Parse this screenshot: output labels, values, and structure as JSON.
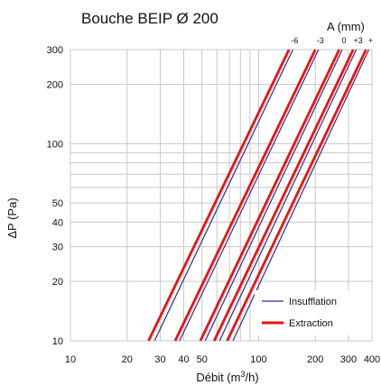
{
  "chart_data": {
    "type": "line",
    "title": "Bouche BEIP Ø 200",
    "xlabel": "Débit (m³/h)",
    "xlabel_parts": {
      "main": "Débit (m",
      "sup": "3",
      "end": "/h)"
    },
    "ylabel": "ΔP (Pa)",
    "x_scale": "log",
    "y_scale": "log",
    "xlim": [
      10,
      400
    ],
    "ylim": [
      10,
      300
    ],
    "x_ticks": [
      10,
      20,
      30,
      40,
      50,
      100,
      200,
      300,
      400
    ],
    "y_ticks": [
      10,
      20,
      30,
      40,
      50,
      100,
      200,
      300
    ],
    "grid": true,
    "legend_position": "bottom-right",
    "opening_axis_title": "A (mm)",
    "opening_labels": [
      "-6",
      "-3",
      "0",
      "+3",
      "+"
    ],
    "series": [
      {
        "name": "Insufflation",
        "color": "#2b2b99",
        "curves": [
          {
            "x": [
              28,
              152
            ],
            "y": [
              10,
              300
            ]
          },
          {
            "x": [
              38,
              208
            ],
            "y": [
              10,
              300
            ]
          },
          {
            "x": [
              52,
              278
            ],
            "y": [
              10,
              300
            ]
          },
          {
            "x": [
              62,
              330
            ],
            "y": [
              10,
              300
            ]
          },
          {
            "x": [
              73,
              385
            ],
            "y": [
              10,
              300
            ]
          }
        ]
      },
      {
        "name": "Extraction",
        "color": "#ee1111",
        "curves": [
          {
            "x": [
              26,
              145
            ],
            "y": [
              10,
              300
            ]
          },
          {
            "x": [
              36,
              200
            ],
            "y": [
              10,
              300
            ]
          },
          {
            "x": [
              49,
              268
            ],
            "y": [
              10,
              300
            ]
          },
          {
            "x": [
              58,
              318
            ],
            "y": [
              10,
              300
            ]
          },
          {
            "x": [
              68,
              372
            ],
            "y": [
              10,
              300
            ]
          }
        ]
      }
    ]
  }
}
